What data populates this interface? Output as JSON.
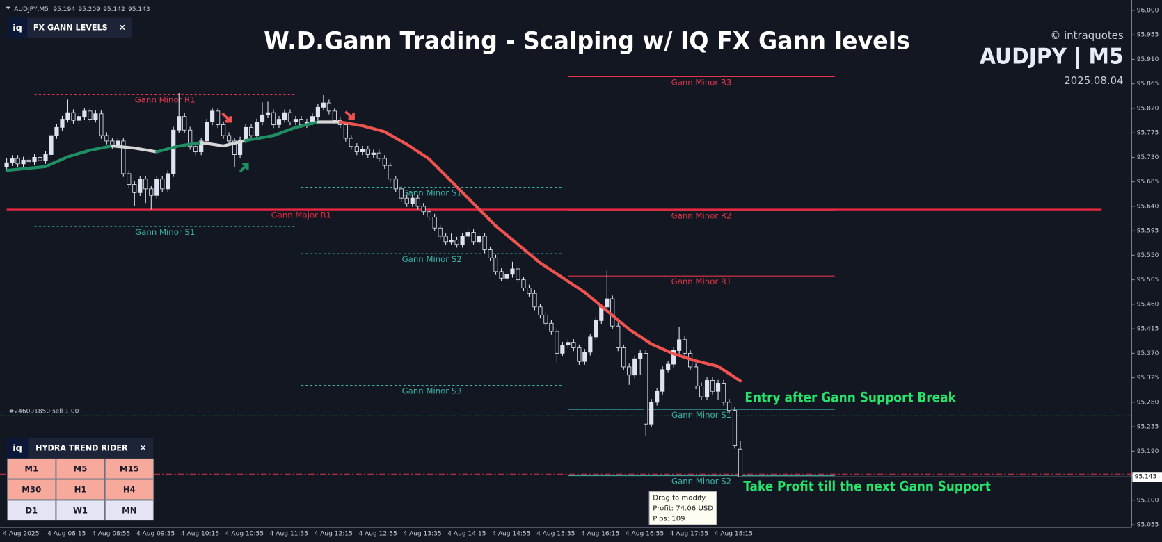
{
  "header": {
    "symbol": "AUDJPY,M5",
    "ohlc": [
      95.194,
      95.209,
      95.142,
      95.143
    ]
  },
  "chart_data": {
    "type": "candlestick",
    "title": "W.D.Gann Trading - Scalping w/ IQ FX Gann levels",
    "brand": "© intraquotes",
    "instrument": "AUDJPY | M5",
    "date": "2025.08.04",
    "ylim": [
      95.05,
      96.012
    ],
    "yticks": [
      {
        "value": 96,
        "label": "96.000"
      },
      95.955,
      {
        "value": 95.91,
        "label": "95.910"
      },
      95.865,
      {
        "value": 95.82,
        "label": "95.820"
      },
      95.775,
      {
        "value": 95.73,
        "label": "95.730"
      },
      95.685,
      {
        "value": 95.64,
        "label": "95.640"
      },
      95.595,
      {
        "value": 95.55,
        "label": "95.550"
      },
      95.505,
      {
        "value": 95.46,
        "label": "95.460"
      },
      95.415,
      {
        "value": 95.37,
        "label": "95.370"
      },
      95.325,
      {
        "value": 95.28,
        "label": "95.280"
      },
      95.235,
      {
        "value": 95.19,
        "label": "95.190"
      },
      95.145,
      {
        "value": 95.1,
        "label": "95.100"
      },
      95.055
    ],
    "grid": false,
    "categories": [
      "4 Aug 2025",
      null,
      null,
      null,
      null,
      null,
      null,
      null,
      "4 Aug 08:15",
      null,
      null,
      null,
      null,
      null,
      null,
      null,
      "4 Aug 08:55",
      null,
      null,
      null,
      null,
      null,
      null,
      null,
      "4 Aug 09:35",
      null,
      null,
      null,
      null,
      null,
      null,
      null,
      "4 Aug 10:15",
      null,
      null,
      null,
      null,
      null,
      null,
      null,
      "4 Aug 10:55",
      null,
      null,
      null,
      null,
      null,
      null,
      null,
      "4 Aug 11:35",
      null,
      null,
      null,
      null,
      null,
      null,
      null,
      "4 Aug 12:15",
      null,
      null,
      null,
      null,
      null,
      null,
      null,
      "4 Aug 12:55",
      null,
      null,
      null,
      null,
      null,
      null,
      null,
      "4 Aug 13:35",
      null,
      null,
      null,
      null,
      null,
      null,
      null,
      "4 Aug 14:15",
      null,
      null,
      null,
      null,
      null,
      null,
      null,
      "4 Aug 14:55",
      null,
      null,
      null,
      null,
      null,
      null,
      null,
      "4 Aug 15:35",
      null,
      null,
      null,
      null,
      null,
      null,
      null,
      "4 Aug 16:15",
      null,
      null,
      null,
      null,
      null,
      null,
      null,
      "4 Aug 16:55",
      null,
      null,
      null,
      null,
      null,
      null,
      null,
      "4 Aug 17:35",
      null,
      null,
      null,
      null,
      null,
      null,
      null,
      "4 Aug 18:15",
      null,
      null,
      null,
      null
    ],
    "candles": [
      [
        95.712,
        95.728,
        95.706,
        95.72
      ],
      [
        95.72,
        95.734,
        95.714,
        95.728
      ],
      [
        95.728,
        95.734,
        95.712,
        95.718
      ],
      [
        95.718,
        95.731,
        95.712,
        95.725
      ],
      [
        95.725,
        95.731,
        95.716,
        95.722
      ],
      [
        95.722,
        95.736,
        95.716,
        95.73
      ],
      [
        95.73,
        95.736,
        95.718,
        95.724
      ],
      [
        95.724,
        95.741,
        95.718,
        95.735
      ],
      [
        95.735,
        95.776,
        95.729,
        95.77
      ],
      [
        95.77,
        95.791,
        95.764,
        95.785
      ],
      [
        95.785,
        95.806,
        95.779,
        95.8
      ],
      [
        95.8,
        95.836,
        95.794,
        95.812
      ],
      [
        95.812,
        95.818,
        95.792,
        95.798
      ],
      [
        95.798,
        95.811,
        95.792,
        95.805
      ],
      [
        95.805,
        95.821,
        95.799,
        95.815
      ],
      [
        95.815,
        95.821,
        95.794,
        95.8
      ],
      [
        95.8,
        95.816,
        95.794,
        95.81
      ],
      [
        95.81,
        95.816,
        95.764,
        95.77
      ],
      [
        95.77,
        95.776,
        95.754,
        95.76
      ],
      [
        95.76,
        95.766,
        95.746,
        95.752
      ],
      [
        95.752,
        95.766,
        95.746,
        95.76
      ],
      [
        95.76,
        95.766,
        95.694,
        95.7
      ],
      [
        95.7,
        95.706,
        95.674,
        95.68
      ],
      [
        95.68,
        95.686,
        95.64,
        95.665
      ],
      [
        95.665,
        95.696,
        95.659,
        95.69
      ],
      [
        95.69,
        95.696,
        95.646,
        95.672
      ],
      [
        95.672,
        95.678,
        95.634,
        95.66
      ],
      [
        95.66,
        95.696,
        95.654,
        95.69
      ],
      [
        95.69,
        95.696,
        95.666,
        95.672
      ],
      [
        95.672,
        95.706,
        95.666,
        95.7
      ],
      [
        95.7,
        95.786,
        95.694,
        95.78
      ],
      [
        95.78,
        95.848,
        95.774,
        95.805
      ],
      [
        95.805,
        95.811,
        95.774,
        95.78
      ],
      [
        95.78,
        95.786,
        95.744,
        95.75
      ],
      [
        95.75,
        95.756,
        95.734,
        95.74
      ],
      [
        95.74,
        95.766,
        95.734,
        95.76
      ],
      [
        95.76,
        95.801,
        95.754,
        95.795
      ],
      [
        95.795,
        95.821,
        95.789,
        95.815
      ],
      [
        95.815,
        95.821,
        95.784,
        95.79
      ],
      [
        95.79,
        95.796,
        95.764,
        95.77
      ],
      [
        95.77,
        95.776,
        95.754,
        95.76
      ],
      [
        95.76,
        95.766,
        95.712,
        95.735
      ],
      [
        95.735,
        95.768,
        95.729,
        95.762
      ],
      [
        95.762,
        95.791,
        95.756,
        95.785
      ],
      [
        95.785,
        95.791,
        95.764,
        95.77
      ],
      [
        95.77,
        95.801,
        95.764,
        95.795
      ],
      [
        95.795,
        95.831,
        95.789,
        95.808
      ],
      [
        95.808,
        95.832,
        95.802,
        95.812
      ],
      [
        95.812,
        95.818,
        95.784,
        95.79
      ],
      [
        95.79,
        95.806,
        95.784,
        95.8
      ],
      [
        95.8,
        95.818,
        95.794,
        95.812
      ],
      [
        95.812,
        95.818,
        95.789,
        95.795
      ],
      [
        95.795,
        95.806,
        95.789,
        95.8
      ],
      [
        95.8,
        95.806,
        95.784,
        95.79
      ],
      [
        95.79,
        95.801,
        95.784,
        95.795
      ],
      [
        95.795,
        95.811,
        95.789,
        95.805
      ],
      [
        95.805,
        95.828,
        95.799,
        95.822
      ],
      [
        95.822,
        95.845,
        95.816,
        95.83
      ],
      [
        95.83,
        95.836,
        95.809,
        95.815
      ],
      [
        95.815,
        95.821,
        95.792,
        95.798
      ],
      [
        95.798,
        95.804,
        95.784,
        95.79
      ],
      [
        95.79,
        95.796,
        95.759,
        95.765
      ],
      [
        95.765,
        95.771,
        95.744,
        95.75
      ],
      [
        95.75,
        95.756,
        95.734,
        95.74
      ],
      [
        95.74,
        95.751,
        95.734,
        95.745
      ],
      [
        95.745,
        95.751,
        95.729,
        95.735
      ],
      [
        95.735,
        95.744,
        95.729,
        95.738
      ],
      [
        95.738,
        95.744,
        95.722,
        95.728
      ],
      [
        95.728,
        95.734,
        95.709,
        95.715
      ],
      [
        95.715,
        95.721,
        95.684,
        95.69
      ],
      [
        95.69,
        95.696,
        95.666,
        95.672
      ],
      [
        95.672,
        95.678,
        95.649,
        95.655
      ],
      [
        95.655,
        95.661,
        95.639,
        95.645
      ],
      [
        95.645,
        95.661,
        95.639,
        95.655
      ],
      [
        95.655,
        95.661,
        95.634,
        95.64
      ],
      [
        95.64,
        95.646,
        95.624,
        95.63
      ],
      [
        95.63,
        95.636,
        95.614,
        95.62
      ],
      [
        95.62,
        95.626,
        95.594,
        95.6
      ],
      [
        95.6,
        95.606,
        95.579,
        95.585
      ],
      [
        95.585,
        95.591,
        95.569,
        95.575
      ],
      [
        95.575,
        95.59,
        95.569,
        95.578
      ],
      [
        95.578,
        95.584,
        95.564,
        95.57
      ],
      [
        95.57,
        95.591,
        95.564,
        95.585
      ],
      [
        95.585,
        95.6,
        95.579,
        95.592
      ],
      [
        95.592,
        95.598,
        95.569,
        95.575
      ],
      [
        95.575,
        95.591,
        95.569,
        95.585
      ],
      [
        95.585,
        95.591,
        95.554,
        95.56
      ],
      [
        95.56,
        95.566,
        95.539,
        95.545
      ],
      [
        95.545,
        95.551,
        95.514,
        95.52
      ],
      [
        95.52,
        95.526,
        95.502,
        95.508
      ],
      [
        95.508,
        95.521,
        95.502,
        95.515
      ],
      [
        95.515,
        95.538,
        95.509,
        95.525
      ],
      [
        95.525,
        95.531,
        95.499,
        95.505
      ],
      [
        95.505,
        95.511,
        95.484,
        95.49
      ],
      [
        95.49,
        95.496,
        95.474,
        95.48
      ],
      [
        95.48,
        95.486,
        95.449,
        95.455
      ],
      [
        95.455,
        95.461,
        95.434,
        95.44
      ],
      [
        95.44,
        95.446,
        95.419,
        95.425
      ],
      [
        95.425,
        95.431,
        95.404,
        95.41
      ],
      [
        95.41,
        95.416,
        95.352,
        95.37
      ],
      [
        95.37,
        95.391,
        95.364,
        95.385
      ],
      [
        95.385,
        95.396,
        95.379,
        95.39
      ],
      [
        95.39,
        95.396,
        95.374,
        95.38
      ],
      [
        95.38,
        95.386,
        95.349,
        95.355
      ],
      [
        95.355,
        95.378,
        95.349,
        95.372
      ],
      [
        95.372,
        95.406,
        95.366,
        95.4
      ],
      [
        95.4,
        95.436,
        95.394,
        95.43
      ],
      [
        95.43,
        95.461,
        95.424,
        95.455
      ],
      [
        95.455,
        95.522,
        95.449,
        95.47
      ],
      [
        95.47,
        95.476,
        95.414,
        95.42
      ],
      [
        95.42,
        95.426,
        95.374,
        95.38
      ],
      [
        95.38,
        95.386,
        95.339,
        95.345
      ],
      [
        95.345,
        95.351,
        95.312,
        95.33
      ],
      [
        95.33,
        95.366,
        95.324,
        95.36
      ],
      [
        95.36,
        95.376,
        95.33,
        95.37
      ],
      [
        95.37,
        95.376,
        95.218,
        95.24
      ],
      [
        95.24,
        95.286,
        95.234,
        95.28
      ],
      [
        95.28,
        95.306,
        95.274,
        95.3
      ],
      [
        95.3,
        95.346,
        95.294,
        95.34
      ],
      [
        95.34,
        95.356,
        95.334,
        95.35
      ],
      [
        95.35,
        95.381,
        95.344,
        95.375
      ],
      [
        95.375,
        95.418,
        95.369,
        95.395
      ],
      [
        95.395,
        95.401,
        95.364,
        95.37
      ],
      [
        95.37,
        95.376,
        95.339,
        95.345
      ],
      [
        95.345,
        95.351,
        95.304,
        95.31
      ],
      [
        95.31,
        95.316,
        95.284,
        95.29
      ],
      [
        95.29,
        95.326,
        95.284,
        95.32
      ],
      [
        95.32,
        95.326,
        95.294,
        95.3
      ],
      [
        95.3,
        95.321,
        95.284,
        95.315
      ],
      [
        95.315,
        95.321,
        95.274,
        95.28
      ],
      [
        95.28,
        95.286,
        95.259,
        95.265
      ],
      [
        95.265,
        95.271,
        95.195,
        95.2
      ],
      [
        95.194,
        95.209,
        95.142,
        95.143
      ]
    ],
    "bull_color": "#dfe3f0",
    "bear_color": "#131722",
    "ma_segments": [
      {
        "color": "#1f8f63",
        "x": [
          0,
          7,
          11,
          15,
          19
        ],
        "values": [
          95.706,
          95.713,
          95.731,
          95.743,
          95.751
        ]
      },
      {
        "color": "#d6d6d6",
        "x": [
          19,
          23,
          27
        ],
        "values": [
          95.751,
          95.747,
          95.74
        ]
      },
      {
        "color": "#1f8f63",
        "x": [
          27,
          31,
          35
        ],
        "values": [
          95.74,
          95.751,
          95.757
        ]
      },
      {
        "color": "#d6d6d6",
        "x": [
          35,
          39,
          43
        ],
        "values": [
          95.757,
          95.751,
          95.761
        ]
      },
      {
        "color": "#1f8f63",
        "x": [
          43,
          48,
          52,
          56
        ],
        "values": [
          95.761,
          95.77,
          95.785,
          95.795
        ]
      },
      {
        "color": "#d6d6d6",
        "x": [
          56,
          60
        ],
        "values": [
          95.795,
          95.795
        ]
      },
      {
        "color": "#ef5350",
        "x": [
          60,
          64,
          68,
          72,
          76,
          80,
          84,
          88,
          92,
          96,
          100,
          104,
          108,
          112,
          116,
          120,
          124,
          128,
          132
        ],
        "values": [
          95.795,
          95.788,
          95.777,
          95.754,
          95.727,
          95.686,
          95.645,
          95.604,
          95.57,
          95.536,
          95.509,
          95.482,
          95.448,
          95.414,
          95.387,
          95.369,
          95.356,
          95.346,
          95.319
        ]
      }
    ],
    "levels": [
      {
        "label": "Gann Minor R1",
        "value": 95.846,
        "from": 5,
        "to": 52,
        "color": "#e0354a",
        "dashed": true
      },
      {
        "label": "Gann Major R1",
        "value": 95.634,
        "from": 0,
        "to": 197,
        "color": "#e8273f",
        "dashed": false,
        "major": true
      },
      {
        "label": "Gann Minor S1",
        "value": 95.603,
        "from": 5,
        "to": 52,
        "color": "#3bb3a8",
        "dashed": true
      },
      {
        "label": "Gann Minor S1",
        "value": 95.675,
        "from": 53,
        "to": 100,
        "color": "#3bb3a8",
        "dashed": true
      },
      {
        "label": "Gann Minor S2",
        "value": 95.553,
        "from": 53,
        "to": 100,
        "color": "#3bb3a8",
        "dashed": true
      },
      {
        "label": "Gann Minor S3",
        "value": 95.311,
        "from": 53,
        "to": 100,
        "color": "#3bb3a8",
        "dashed": true
      },
      {
        "label": "Gann Minor R3",
        "value": 95.878,
        "from": 101,
        "to": 149,
        "color": "#e0354a",
        "dashed": false
      },
      {
        "label": "Gann Minor R2",
        "value": 95.633,
        "from": 101,
        "to": 149,
        "color": "#e0354a",
        "dashed": false
      },
      {
        "label": "Gann Minor R1",
        "value": 95.512,
        "from": 101,
        "to": 149,
        "color": "#e0354a",
        "dashed": false
      },
      {
        "label": "Gann Minor S1",
        "value": 95.267,
        "from": 101,
        "to": 149,
        "color": "#3bb3a8",
        "dashed": false
      },
      {
        "label": "Gann Minor S2",
        "value": 95.145,
        "from": 101,
        "to": 149,
        "color": "#3bb3a8",
        "dashed": false
      }
    ],
    "trade": {
      "label": "#246091850 sell 1.00",
      "entry": 95.255,
      "entry_color": "#2fbf4a",
      "take_profit": 95.148,
      "tp_color": "#e0354a"
    },
    "current_price": 95.143,
    "annotations": [
      "Entry after Gann Support Break",
      "Take Profit till the next Gann Support"
    ]
  },
  "panels": {
    "gann": {
      "logo": "iq",
      "title": "FX GANN LEVELS"
    },
    "hydra": {
      "logo": "iq",
      "title": "HYDRA TREND RIDER",
      "buttons": [
        {
          "label": "M1",
          "color": "#f7a99c"
        },
        {
          "label": "M5",
          "color": "#f7a99c"
        },
        {
          "label": "M15",
          "color": "#f7a99c"
        },
        {
          "label": "M30",
          "color": "#f7a99c"
        },
        {
          "label": "H1",
          "color": "#f7a99c"
        },
        {
          "label": "H4",
          "color": "#f7a99c"
        },
        {
          "label": "D1",
          "color": "#e4e4f4"
        },
        {
          "label": "W1",
          "color": "#e4e4f4"
        },
        {
          "label": "MN",
          "color": "#e4e4f4"
        }
      ]
    }
  },
  "tooltip": [
    "Drag to modify",
    "Profit: 74.06 USD",
    "Pips: 109"
  ]
}
